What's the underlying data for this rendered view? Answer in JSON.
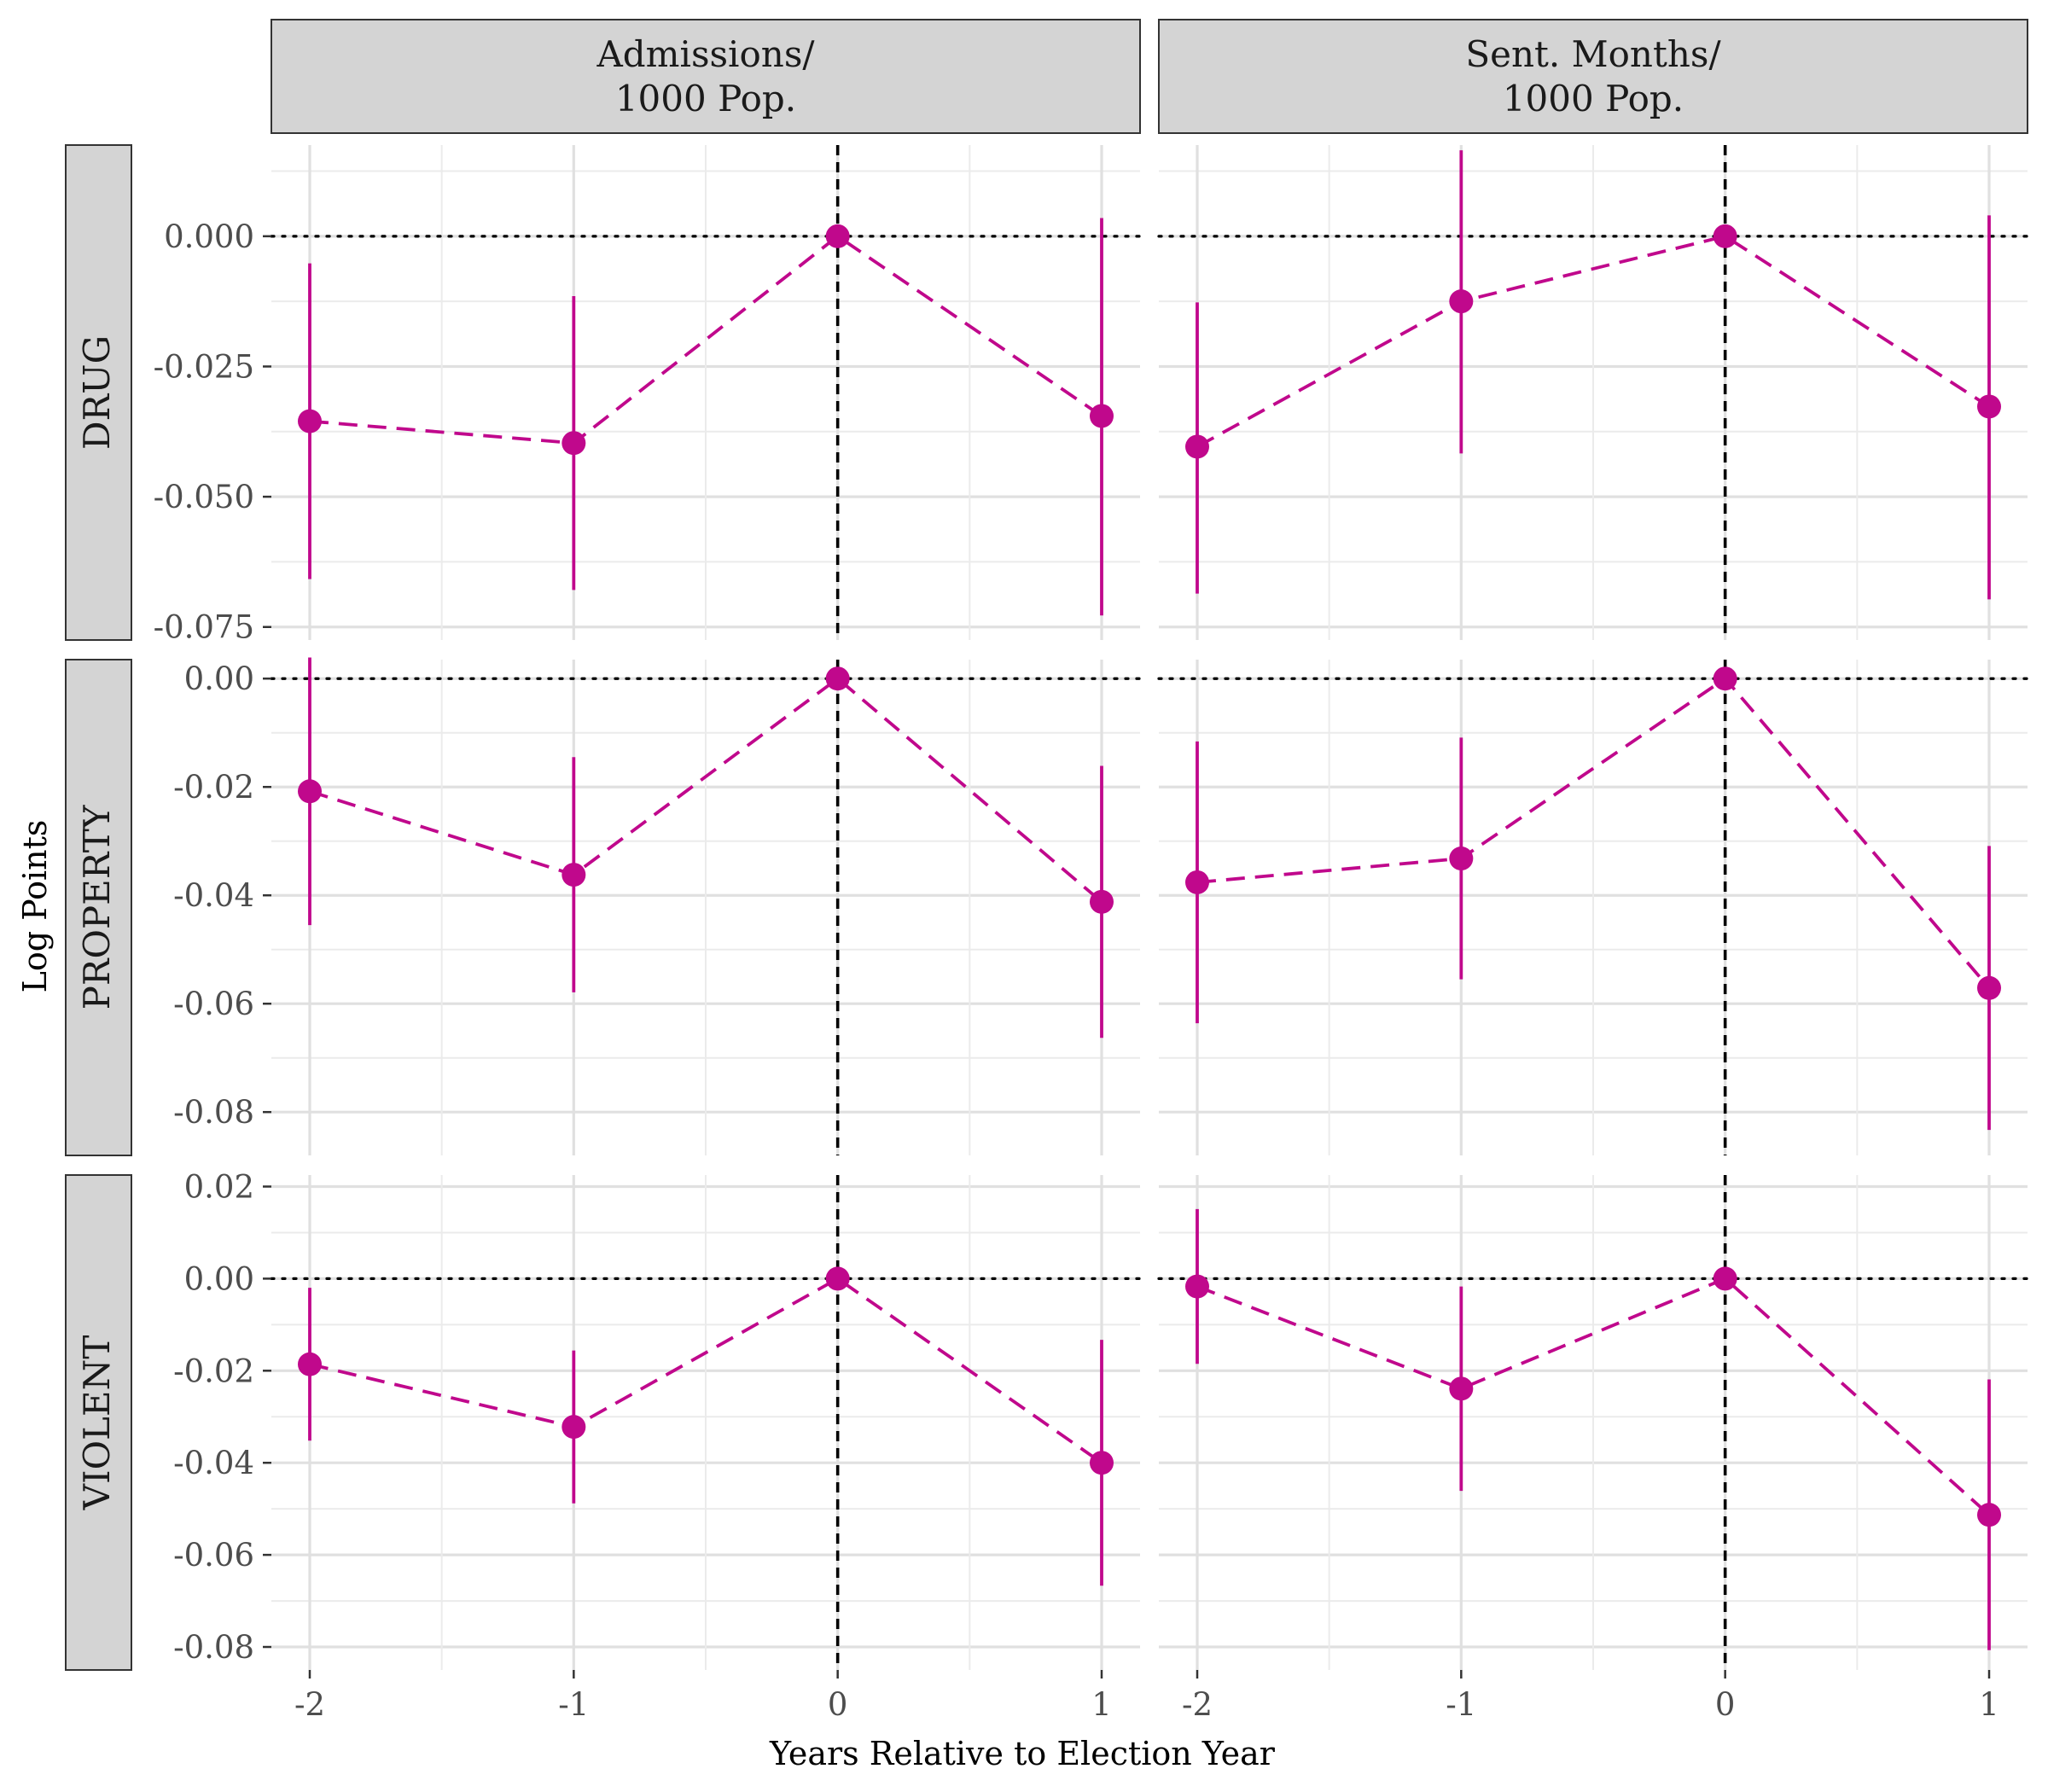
{
  "chart_data": {
    "type": "line",
    "xlabel": "Years Relative to Election Year",
    "ylabel": "Log Points",
    "x": [
      -2,
      -1,
      0,
      1
    ],
    "x_tick_labels": [
      "-2",
      "-1",
      "0",
      "1"
    ],
    "columns": [
      "Admissions/\n1000 Pop.",
      "Sent. Months/\n1000 Pop."
    ],
    "rows": [
      "DRUG",
      "PROPERTY",
      "VIOLENT"
    ],
    "reference_lines": {
      "vertical_x": 0,
      "horizontal_y": 0
    },
    "color": "#c0088c",
    "grid": true,
    "row_scales": [
      {
        "row": "DRUG",
        "ylim": [
          -0.0775,
          0.0175
        ],
        "ticks": [
          0.0,
          -0.025,
          -0.05,
          -0.075
        ],
        "tick_labels": [
          "0.000",
          "-0.025",
          "-0.050",
          "-0.075"
        ]
      },
      {
        "row": "PROPERTY",
        "ylim": [
          -0.088,
          0.0035
        ],
        "ticks": [
          0.0,
          -0.02,
          -0.04,
          -0.06,
          -0.08
        ],
        "tick_labels": [
          "0.00",
          "-0.02",
          "-0.04",
          "-0.06",
          "-0.08"
        ]
      },
      {
        "row": "VIOLENT",
        "ylim": [
          -0.085,
          0.0225
        ],
        "ticks": [
          0.02,
          0.0,
          -0.02,
          -0.04,
          -0.06,
          -0.08
        ],
        "tick_labels": [
          "0.02",
          "0.00",
          "-0.02",
          "-0.04",
          "-0.06",
          "-0.08"
        ]
      }
    ],
    "panels": [
      {
        "row": "DRUG",
        "column": "Admissions/\n1000 Pop.",
        "estimate": [
          -0.0355,
          -0.0397,
          0.0,
          -0.0345
        ],
        "lower": [
          -0.0658,
          -0.0679,
          0.0,
          -0.0728
        ],
        "upper": [
          -0.0052,
          -0.0115,
          0.0,
          0.0035
        ]
      },
      {
        "row": "DRUG",
        "column": "Sent. Months/\n1000 Pop.",
        "estimate": [
          -0.0404,
          -0.0125,
          0.0,
          -0.0327
        ],
        "lower": [
          -0.0686,
          -0.0417,
          0.0,
          -0.0697
        ],
        "upper": [
          -0.0127,
          0.0165,
          0.0,
          0.004
        ]
      },
      {
        "row": "PROPERTY",
        "column": "Admissions/\n1000 Pop.",
        "estimate": [
          -0.0208,
          -0.0362,
          0.0,
          -0.0412
        ],
        "lower": [
          -0.0455,
          -0.0579,
          0.0,
          -0.0663
        ],
        "upper": [
          0.0039,
          -0.0145,
          0.0,
          -0.0161
        ]
      },
      {
        "row": "PROPERTY",
        "column": "Sent. Months/\n1000 Pop.",
        "estimate": [
          -0.0376,
          -0.0332,
          0.0,
          -0.0571
        ],
        "lower": [
          -0.0636,
          -0.0555,
          0.0,
          -0.0833
        ],
        "upper": [
          -0.0116,
          -0.0109,
          0.0,
          -0.0309
        ]
      },
      {
        "row": "VIOLENT",
        "column": "Admissions/\n1000 Pop.",
        "estimate": [
          -0.0186,
          -0.0322,
          0.0,
          -0.04
        ],
        "lower": [
          -0.0352,
          -0.0488,
          0.0,
          -0.0667
        ],
        "upper": [
          -0.002,
          -0.0156,
          0.0,
          -0.0133
        ]
      },
      {
        "row": "VIOLENT",
        "column": "Sent. Months/\n1000 Pop.",
        "estimate": [
          -0.0017,
          -0.0239,
          0.0,
          -0.0513
        ],
        "lower": [
          -0.0185,
          -0.0461,
          0.0,
          -0.0807
        ],
        "upper": [
          0.0151,
          -0.0017,
          0.0,
          -0.0219
        ]
      }
    ]
  }
}
